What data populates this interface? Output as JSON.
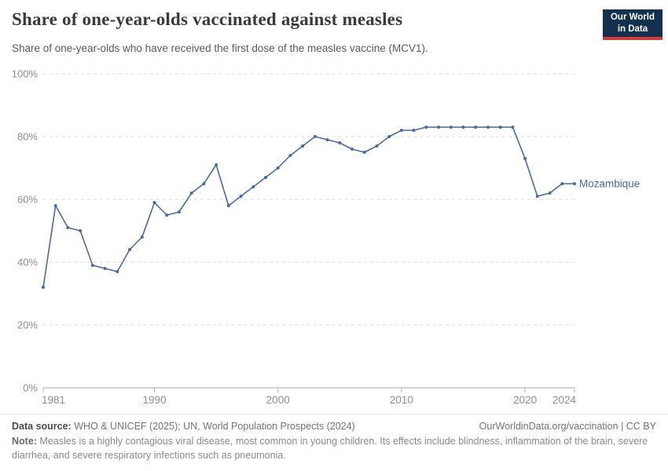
{
  "header": {
    "title": "Share of one-year-olds vaccinated against measles",
    "subtitle": "Share of one-year-olds who have received the first dose of the measles vaccine (MCV1).",
    "logo": {
      "line1": "Our World",
      "line2": "in Data"
    }
  },
  "chart_data": {
    "type": "line",
    "title": "Share of one-year-olds vaccinated against measles",
    "xlabel": "",
    "ylabel": "",
    "x": [
      1981,
      1982,
      1983,
      1984,
      1985,
      1986,
      1987,
      1988,
      1989,
      1990,
      1991,
      1992,
      1993,
      1994,
      1995,
      1996,
      1997,
      1998,
      1999,
      2000,
      2001,
      2002,
      2003,
      2004,
      2005,
      2006,
      2007,
      2008,
      2009,
      2010,
      2011,
      2012,
      2013,
      2014,
      2015,
      2016,
      2017,
      2018,
      2019,
      2020,
      2021,
      2022,
      2023,
      2024
    ],
    "series": [
      {
        "name": "Mozambique",
        "color": "#4c6a9c",
        "values": [
          32,
          58,
          51,
          50,
          39,
          38,
          37,
          44,
          48,
          59,
          55,
          56,
          62,
          65,
          71,
          58,
          61,
          64,
          67,
          70,
          74,
          77,
          80,
          79,
          78,
          76,
          75,
          77,
          80,
          82,
          82,
          83,
          83,
          83,
          83,
          83,
          83,
          83,
          83,
          73,
          61,
          62,
          65,
          65
        ]
      }
    ],
    "xlim": [
      1981,
      2024
    ],
    "ylim": [
      0,
      100
    ],
    "x_ticks": [
      1981,
      1990,
      2000,
      2010,
      2020,
      2024
    ],
    "y_ticks": [
      0,
      20,
      40,
      60,
      80,
      100
    ],
    "y_tick_suffix": "%",
    "grid": "horizontal-dashed",
    "legend": "line-end-label"
  },
  "colors": {
    "line": "#4c6a9c",
    "grid": "#dcdcdc",
    "axis": "#a9a9a9",
    "tick_label": "#8f8f8f",
    "logo_bg": "#13304f",
    "logo_accent": "#d93a34"
  },
  "footer": {
    "data_source_label": "Data source:",
    "data_source_value": " WHO & UNICEF (2025); UN, World Population Prospects (2024)",
    "attribution": "OurWorldinData.org/vaccination | CC BY",
    "note_label": "Note:",
    "note_text": " Measles is a highly contagious viral disease, most common in young children. Its effects include blindness, inflammation of the brain, severe diarrhea, and severe respiratory infections such as pneumonia."
  }
}
